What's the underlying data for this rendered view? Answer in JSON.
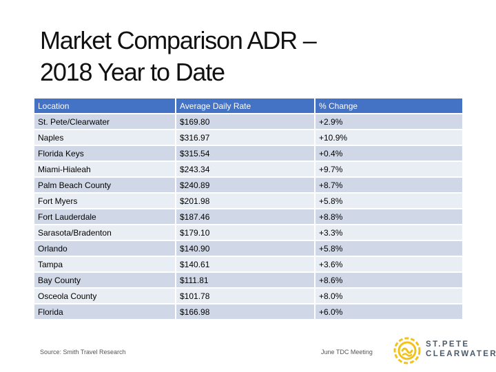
{
  "title": {
    "line1": "Market Comparison ADR –",
    "line2": "2018 Year to Date"
  },
  "table": {
    "headers": [
      "Location",
      "Average Daily Rate",
      "% Change"
    ],
    "rows": [
      [
        "St. Pete/Clearwater",
        "$169.80",
        "+2.9%"
      ],
      [
        "Naples",
        "$316.97",
        "+10.9%"
      ],
      [
        "Florida Keys",
        "$315.54",
        "+0.4%"
      ],
      [
        "Miami-Hialeah",
        "$243.34",
        "+9.7%"
      ],
      [
        "Palm Beach County",
        "$240.89",
        "+8.7%"
      ],
      [
        "Fort Myers",
        "$201.98",
        "+5.8%"
      ],
      [
        "Fort Lauderdale",
        "$187.46",
        "+8.8%"
      ],
      [
        "Sarasota/Bradenton",
        "$179.10",
        "+3.3%"
      ],
      [
        "Orlando",
        "$140.90",
        "+5.8%"
      ],
      [
        "Tampa",
        "$140.61",
        "+3.6%"
      ],
      [
        "Bay County",
        "$111.81",
        "+8.6%"
      ],
      [
        "Osceola County",
        "$101.78",
        "+8.0%"
      ],
      [
        "Florida",
        "$166.98",
        "+6.0%"
      ]
    ]
  },
  "footer": {
    "source": "Source: Smith Travel Research",
    "meeting": "June TDC Meeting"
  },
  "logo": {
    "line1": "ST.PETE",
    "line2": "CLEARWATER",
    "icon": "sun-swirl-icon",
    "icon_color": "#f2c21b",
    "text_color": "#4a5a6a"
  },
  "colors": {
    "header": "#4472c4",
    "row_dark": "#d0d8e8",
    "row_light": "#e9edf4"
  }
}
